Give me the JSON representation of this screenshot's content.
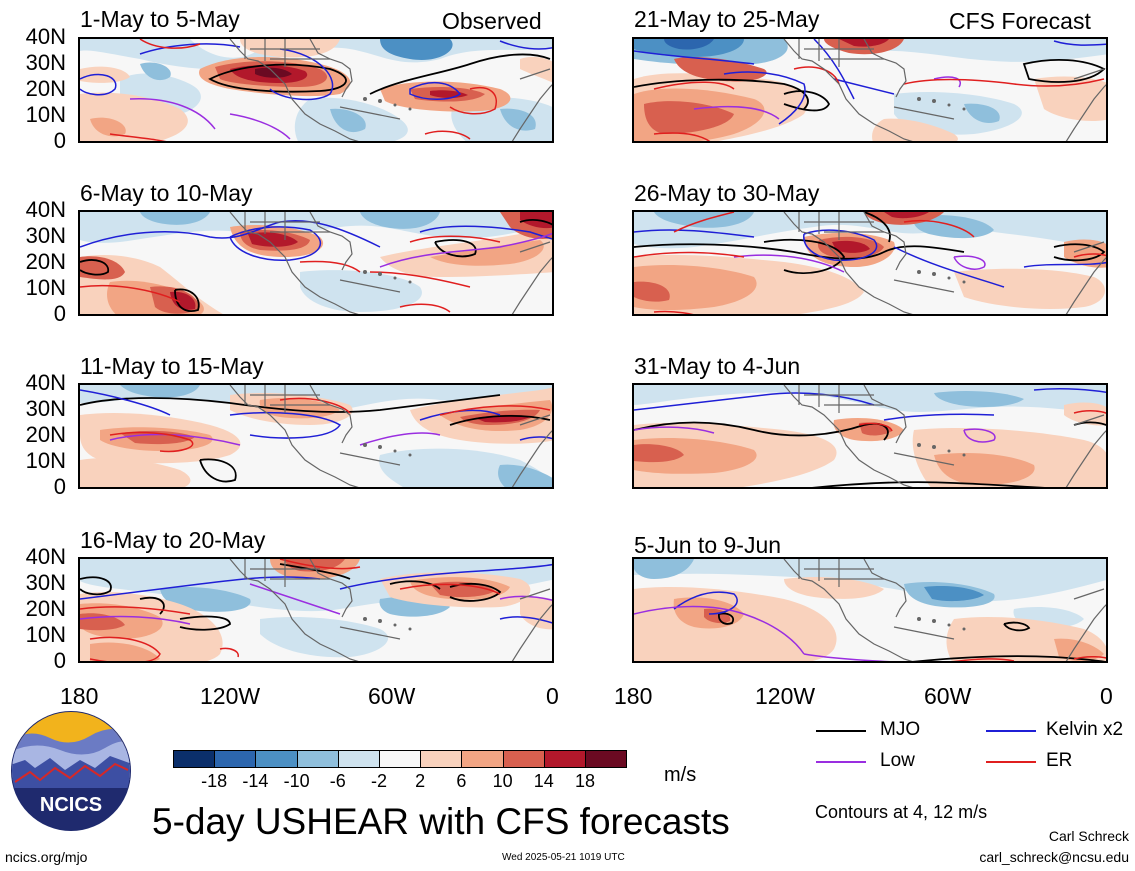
{
  "panels": [
    {
      "title": "1-May to 5-May",
      "header": "Observed"
    },
    {
      "title": "21-May to 25-May",
      "header": "CFS Forecast"
    },
    {
      "title": "6-May to 10-May",
      "header": ""
    },
    {
      "title": "26-May to 30-May",
      "header": ""
    },
    {
      "title": "11-May to 15-May",
      "header": ""
    },
    {
      "title": "31-May to 4-Jun",
      "header": ""
    },
    {
      "title": "16-May to 20-May",
      "header": ""
    },
    {
      "title": "5-Jun to 9-Jun",
      "header": ""
    }
  ],
  "lat_ticks": [
    "40N",
    "30N",
    "20N",
    "10N",
    "0"
  ],
  "lon_ticks": [
    "180",
    "120W",
    "60W",
    "0"
  ],
  "colorbar": {
    "labels": [
      "-18",
      "-14",
      "-10",
      "-6",
      "-2",
      "2",
      "6",
      "10",
      "14",
      "18"
    ],
    "colors": [
      "#0b2f6b",
      "#2c66ae",
      "#4c90c4",
      "#8fbfdc",
      "#cfe3ef",
      "#f7f7f7",
      "#f9d2bd",
      "#f2a584",
      "#d8604f",
      "#b2182b",
      "#6b0a22"
    ],
    "unit": "m/s"
  },
  "legend": {
    "mjo": "MJO",
    "kelvin": "Kelvin x2",
    "low": "Low",
    "er": "ER",
    "colors": {
      "mjo": "#000000",
      "kelvin": "#1f1fd6",
      "low": "#9a2ee0",
      "er": "#e01f1f"
    }
  },
  "contours_note": "Contours at 4, 12 m/s",
  "main_title": "5-day USHEAR with CFS forecasts",
  "footer": {
    "left": "ncics.org/mjo",
    "center": "Wed 2025-05-21 1019 UTC",
    "author": "Carl Schreck",
    "email": "carl_schreck@ncsu.edu"
  },
  "logo_text": "NCICS"
}
